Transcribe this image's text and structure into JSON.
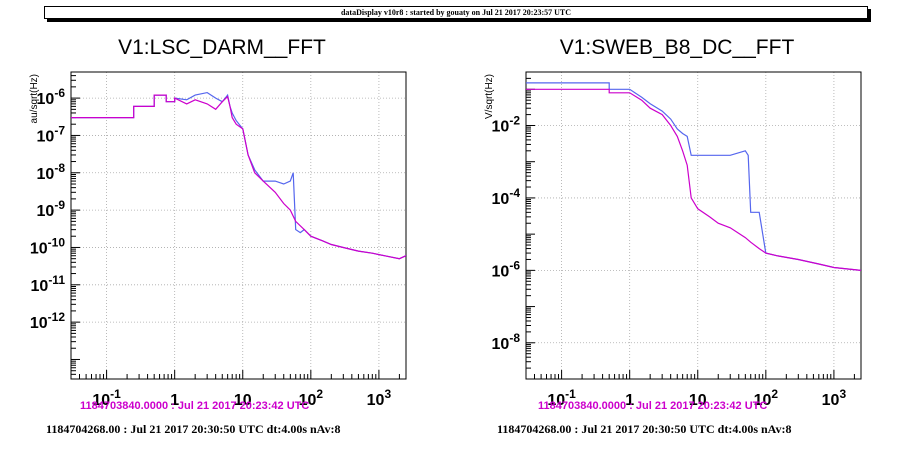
{
  "header": {
    "text": "dataDisplay v10r8 : started by gouaty on Jul 21 2017 20:23:57 UTC"
  },
  "colors": {
    "reference": "#cc00cc",
    "current": "#5566ee",
    "frame": "#000000",
    "grid": "#aaaaaa"
  },
  "panels": [
    {
      "title": "V1:LSC_DARM__FFT",
      "ylabel": "au/sqrt(Hz)",
      "legend_reference": "1184703840.0000 : Jul 21 2017 20:23:42 UTC",
      "legend_current": "1184704268.00 : Jul 21 2017 20:30:50 UTC dt:4.00s nAv:8",
      "x_tick_labels": [
        "10^-1",
        "1",
        "10",
        "10^2",
        "10^3"
      ],
      "y_tick_labels": [
        "10^-6",
        "10^-7",
        "10^-8",
        "10^-9",
        "10^-10",
        "10^-11",
        "10^-12"
      ]
    },
    {
      "title": "V1:SWEB_B8_DC__FFT",
      "ylabel": "V/sqrt(Hz)",
      "legend_reference": "1184703840.0000 : Jul 21 2017 20:23:42 UTC",
      "legend_current": "1184704268.00 : Jul 21 2017 20:30:50 UTC dt:4.00s nAv:8",
      "x_tick_labels": [
        "10^-1",
        "1",
        "10",
        "10^2",
        "10^3"
      ],
      "y_tick_labels": [
        "10^-2",
        "10^-4",
        "10^-6",
        "10^-8"
      ]
    }
  ],
  "chart_data": [
    {
      "type": "line",
      "title": "V1:LSC_DARM__FFT",
      "ylabel": "au/sqrt(Hz)",
      "xscale": "log",
      "yscale": "log",
      "xlim": [
        0.03,
        2500
      ],
      "ylim": [
        3e-14,
        5e-06
      ],
      "grid": true,
      "series": [
        {
          "color": "#cc00cc",
          "x": [
            0.03,
            0.25,
            0.25,
            0.5,
            0.5,
            0.75,
            0.75,
            1,
            1,
            1.5,
            2,
            3,
            4,
            5,
            6,
            6.5,
            7,
            8,
            10,
            12,
            15,
            20,
            30,
            40,
            50,
            60,
            80,
            100,
            150,
            200,
            300,
            500,
            800,
            1200,
            2000,
            2500
          ],
          "y": [
            3e-07,
            3e-07,
            6e-07,
            6e-07,
            1.2e-06,
            1.2e-06,
            8e-07,
            8e-07,
            1e-06,
            7e-07,
            9e-07,
            7e-07,
            5e-07,
            8e-07,
            1.1e-06,
            6e-07,
            3e-07,
            2e-07,
            1.5e-07,
            3e-08,
            1e-08,
            6e-09,
            3e-09,
            1.5e-09,
            1e-09,
            5e-10,
            3e-10,
            2e-10,
            1.5e-10,
            1.2e-10,
            1e-10,
            8e-11,
            7e-11,
            6e-11,
            5e-11,
            6e-11
          ]
        },
        {
          "color": "#5566ee",
          "x": [
            0.03,
            0.25,
            0.25,
            0.5,
            0.5,
            0.75,
            0.75,
            1,
            1,
            1.5,
            2,
            3,
            4,
            5,
            6,
            6.5,
            7,
            8,
            10,
            12,
            15,
            20,
            30,
            40,
            50,
            55,
            60,
            70,
            80,
            100,
            150,
            200,
            300,
            500,
            800,
            1200,
            2000,
            2500
          ],
          "y": [
            3e-07,
            3e-07,
            6e-07,
            6e-07,
            1.2e-06,
            1.2e-06,
            8e-07,
            8e-07,
            1e-06,
            9e-07,
            1.2e-06,
            1.4e-06,
            1e-06,
            8e-07,
            1.2e-06,
            6e-07,
            4e-07,
            2.5e-07,
            1.5e-07,
            3e-08,
            1.2e-08,
            6e-09,
            6e-09,
            5e-09,
            6e-09,
            1e-08,
            3e-10,
            2.5e-10,
            3e-10,
            2e-10,
            1.5e-10,
            1.2e-10,
            1e-10,
            8e-11,
            7e-11,
            6e-11,
            5e-11,
            6e-11
          ]
        }
      ]
    },
    {
      "type": "line",
      "title": "V1:SWEB_B8_DC__FFT",
      "ylabel": "V/sqrt(Hz)",
      "xscale": "log",
      "yscale": "log",
      "xlim": [
        0.03,
        2500
      ],
      "ylim": [
        1e-09,
        0.3
      ],
      "grid": true,
      "series": [
        {
          "color": "#cc00cc",
          "x": [
            0.03,
            0.5,
            0.5,
            1,
            1.5,
            2,
            3,
            4,
            5,
            6,
            7,
            8,
            10,
            15,
            20,
            30,
            50,
            60,
            80,
            100,
            150,
            300,
            600,
            1000,
            2500
          ],
          "y": [
            0.1,
            0.1,
            0.08,
            0.08,
            0.05,
            0.03,
            0.02,
            0.01,
            0.005,
            0.002,
            0.0008,
            0.0001,
            5e-05,
            3e-05,
            2e-05,
            1.5e-05,
            8e-06,
            6e-06,
            4e-06,
            3e-06,
            2.5e-06,
            2e-06,
            1.5e-06,
            1.2e-06,
            1e-06
          ]
        },
        {
          "color": "#5566ee",
          "x": [
            0.03,
            0.5,
            0.5,
            1,
            1.5,
            2,
            3,
            4,
            5,
            6,
            7,
            8,
            10,
            15,
            20,
            30,
            50,
            55,
            60,
            80,
            100,
            150,
            300,
            600,
            1000,
            2500
          ],
          "y": [
            0.15,
            0.15,
            0.1,
            0.1,
            0.06,
            0.04,
            0.025,
            0.015,
            0.008,
            0.006,
            0.005,
            0.0015,
            0.0015,
            0.0015,
            0.0015,
            0.0015,
            0.002,
            0.0015,
            4e-05,
            4e-05,
            3e-06,
            2.5e-06,
            2e-06,
            1.5e-06,
            1.2e-06,
            1e-06
          ]
        }
      ]
    }
  ]
}
